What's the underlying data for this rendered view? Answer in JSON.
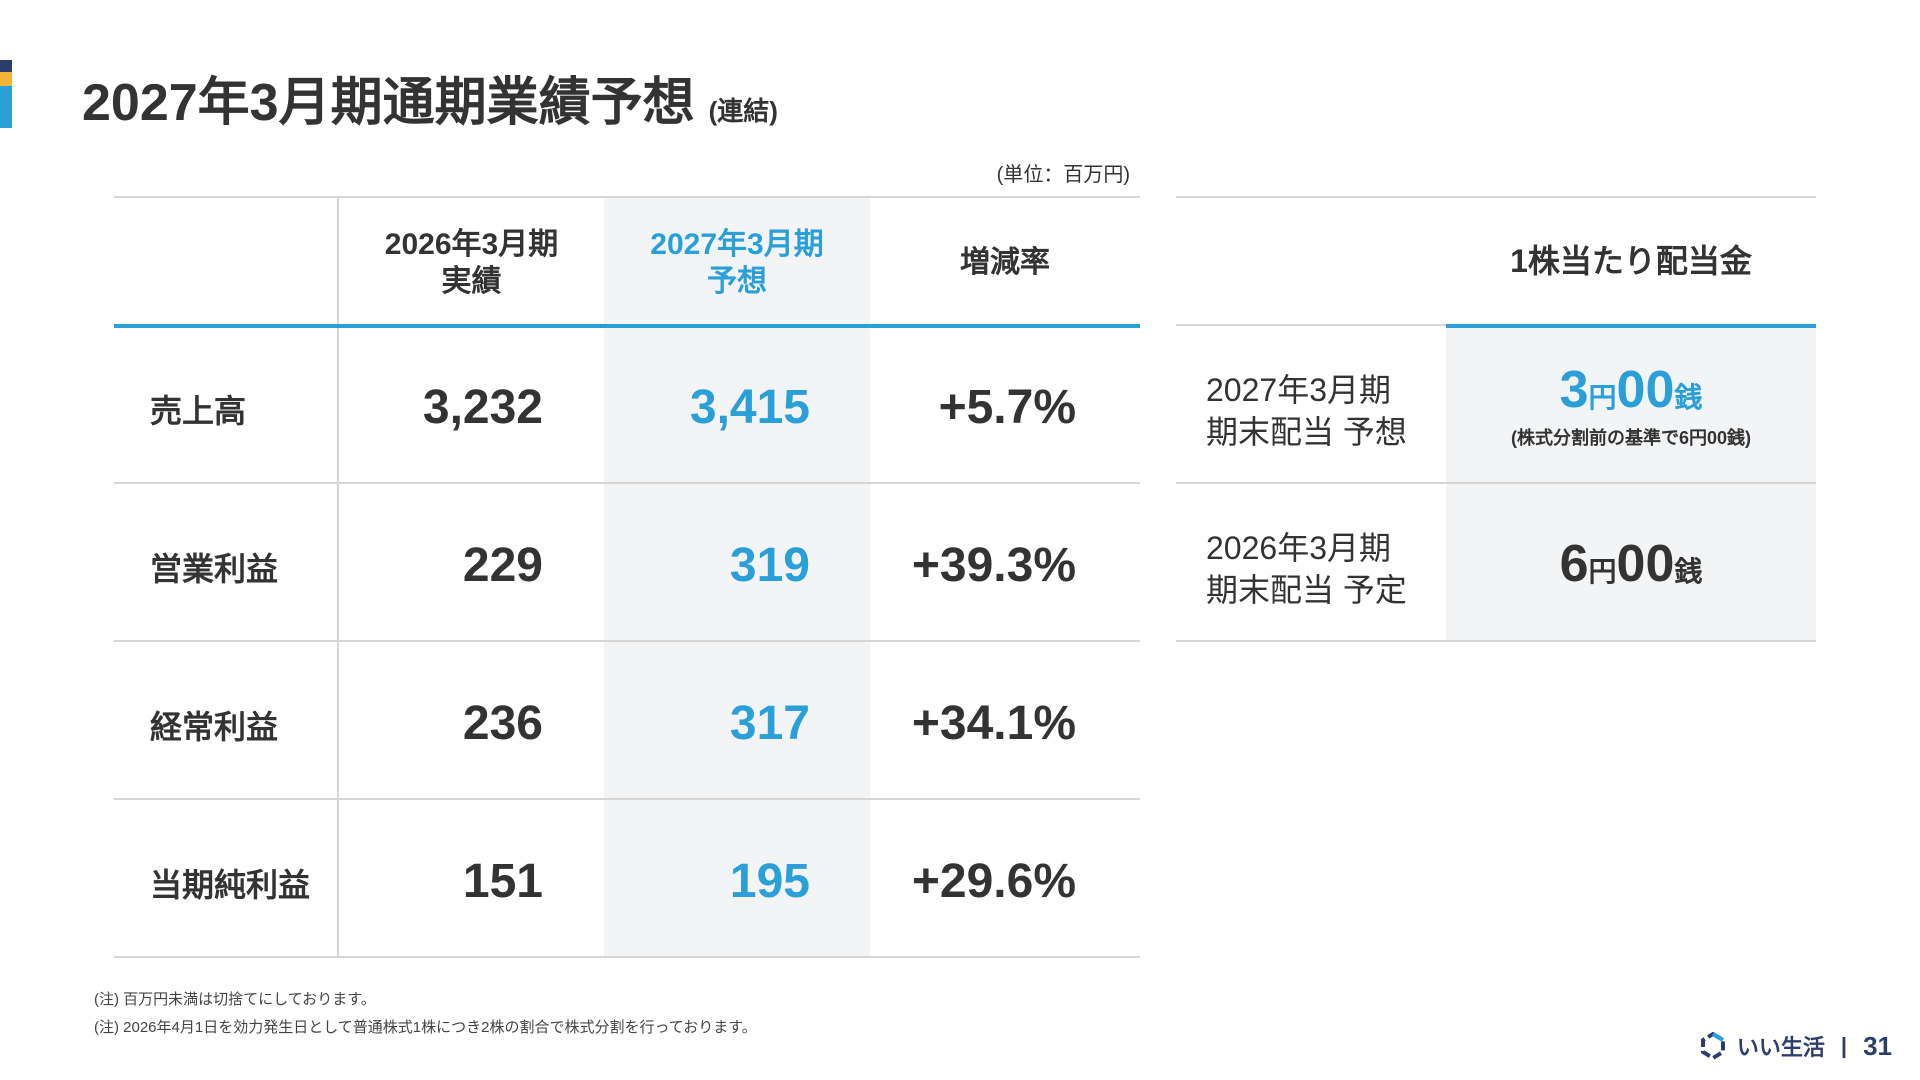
{
  "title": "2027年3月期通期業績予想",
  "title_sub": "(連結)",
  "unit": "(単位：百万円)",
  "table": {
    "headers": [
      {
        "line1": "2026年3月期",
        "line2": "実績"
      },
      {
        "line1": "2027年3月期",
        "line2": "予想"
      },
      {
        "line1": "増減率",
        "line2": ""
      }
    ],
    "rows": [
      {
        "label": "売上高",
        "actual": "3,232",
        "forecast": "3,415",
        "change": "+5.7%"
      },
      {
        "label": "営業利益",
        "actual": "229",
        "forecast": "319",
        "change": "+39.3%"
      },
      {
        "label": "経常利益",
        "actual": "236",
        "forecast": "317",
        "change": "+34.1%"
      },
      {
        "label": "当期純利益",
        "actual": "151",
        "forecast": "195",
        "change": "+29.6%"
      }
    ]
  },
  "dividend": {
    "header": "1株当たり配当金",
    "rows": [
      {
        "label1": "2027年3月期",
        "label2": "期末配当 予想",
        "yen": "3",
        "yen_unit": "円",
        "sen": "00",
        "sen_unit": "銭",
        "note": "(株式分割前の基準で6円00銭)"
      },
      {
        "label1": "2026年3月期",
        "label2": "期末配当 予定",
        "yen": "6",
        "yen_unit": "円",
        "sen": "00",
        "sen_unit": "銭",
        "note": ""
      }
    ]
  },
  "notes": [
    "(注) 百万円未満は切捨てにしております。",
    "(注) 2026年4月1日を効力発生日として普通株式1株につき2株の割合で株式分割を行っております。"
  ],
  "footer": {
    "brand": "いい生活",
    "separator": "|",
    "page": "31"
  },
  "colors": {
    "accent_blue": "#2a9fd8",
    "accent_navy": "#2c3e6b",
    "accent_yellow": "#f2b53a",
    "highlight_bg": "#f3f4f6"
  }
}
